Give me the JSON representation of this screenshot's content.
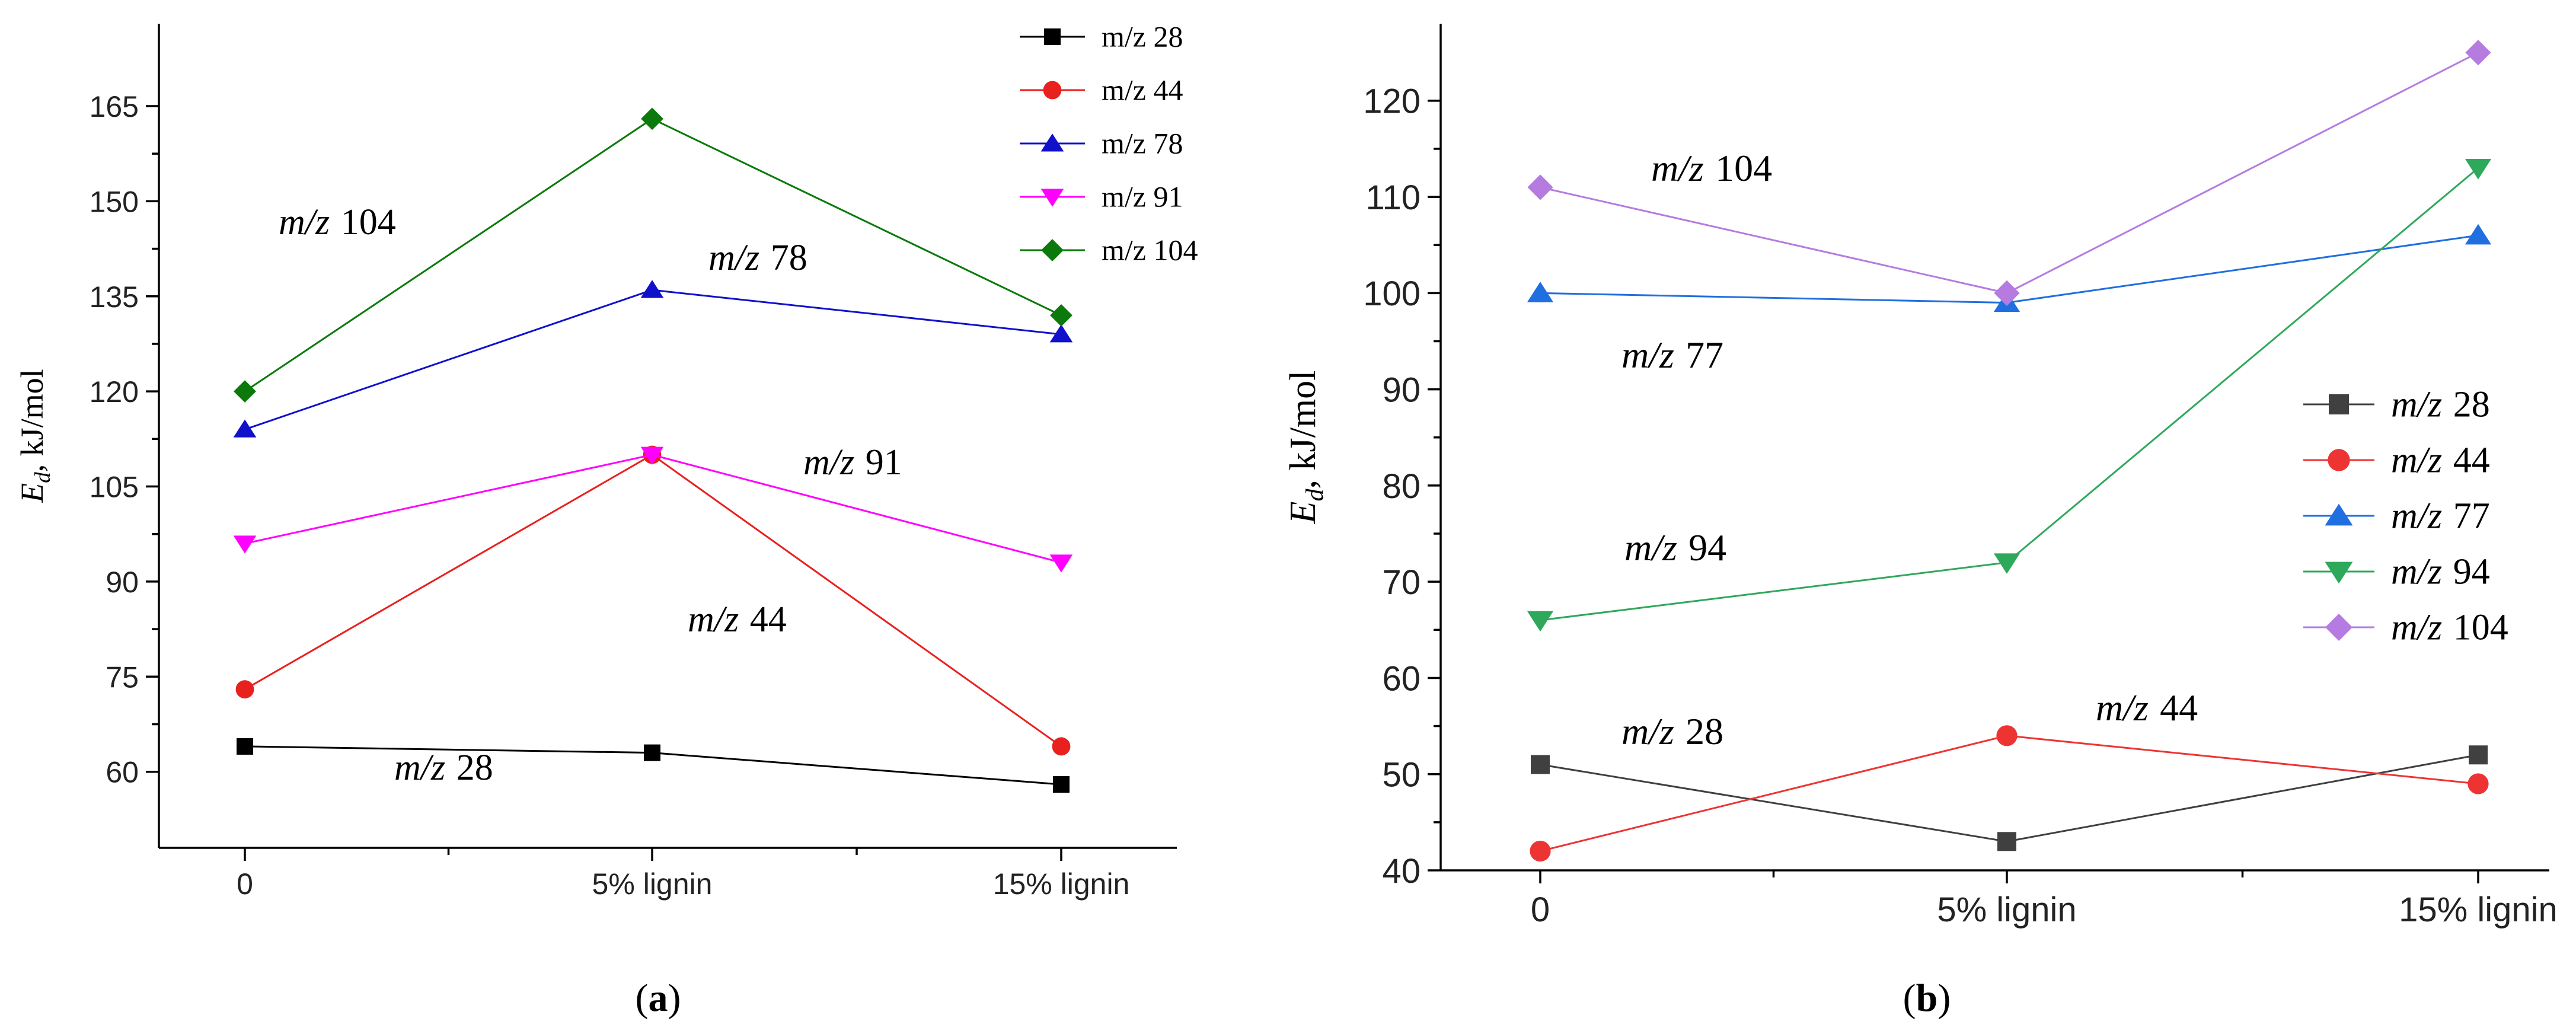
{
  "chart_data": [
    {
      "type": "line",
      "panel_label": "(a)",
      "panel_label_parts": {
        "open": "(",
        "letter": "a",
        "close": ")"
      },
      "categories": [
        "0",
        "5% lignin",
        "15% lignin"
      ],
      "ylabel": "E_d, kJ/mol",
      "ylabel_parts": {
        "main": "E",
        "sub": "d",
        "rest": ", kJ/mol"
      },
      "ylim": [
        48,
        178
      ],
      "yticks": [
        60,
        75,
        90,
        105,
        120,
        135,
        150,
        165
      ],
      "ytick_labels": [
        "60",
        "75",
        "90",
        "105",
        "120",
        "135",
        "150",
        "165"
      ],
      "legend_position": "top-right",
      "series": [
        {
          "name": "m/z 28",
          "legend_label": "m/z 28",
          "color": "#000000",
          "marker": "square",
          "values": [
            64,
            63,
            58
          ]
        },
        {
          "name": "m/z 44",
          "legend_label": "m/z 44",
          "color": "#e8211e",
          "marker": "circle",
          "values": [
            73,
            110,
            64
          ]
        },
        {
          "name": "m/z 78",
          "legend_label": "m/z 78",
          "color": "#1111cc",
          "marker": "triangle-up",
          "values": [
            114,
            136,
            129
          ]
        },
        {
          "name": "m/z 91",
          "legend_label": "m/z 91",
          "color": "#ff00ff",
          "marker": "triangle-down",
          "values": [
            96,
            110,
            93
          ]
        },
        {
          "name": "m/z 104",
          "legend_label": "m/z 104",
          "color": "#0b7a0b",
          "marker": "diamond",
          "values": [
            120,
            163,
            132
          ]
        }
      ],
      "annotations": [
        {
          "series": "m/z 104",
          "prefix": "m/z",
          "num": "104"
        },
        {
          "series": "m/z 78",
          "prefix": "m/z",
          "num": "78"
        },
        {
          "series": "m/z 91",
          "prefix": "m/z",
          "num": "91"
        },
        {
          "series": "m/z 44",
          "prefix": "m/z",
          "num": "44"
        },
        {
          "series": "m/z 28",
          "prefix": "m/z",
          "num": "28"
        }
      ]
    },
    {
      "type": "line",
      "panel_label": "(b)",
      "panel_label_parts": {
        "open": "(",
        "letter": "b",
        "close": ")"
      },
      "categories": [
        "0",
        "5% lignin",
        "15% lignin"
      ],
      "ylabel": "E_d, kJ/mol",
      "ylabel_parts": {
        "main": "E",
        "sub": "d",
        "rest": ", kJ/mol"
      },
      "ylim": [
        40,
        128
      ],
      "yticks": [
        40,
        50,
        60,
        70,
        80,
        90,
        100,
        110,
        120
      ],
      "ytick_labels": [
        "40",
        "50",
        "60",
        "70",
        "80",
        "90",
        "100",
        "110",
        "120"
      ],
      "legend_position": "center-right",
      "series": [
        {
          "name": "m/z 28",
          "legend_label": "m/z 28",
          "color": "#404040",
          "marker": "square",
          "values": [
            51,
            43,
            52
          ]
        },
        {
          "name": "m/z 44",
          "legend_label": "m/z 44",
          "color": "#ee3333",
          "marker": "circle",
          "values": [
            42,
            54,
            49
          ]
        },
        {
          "name": "m/z 77",
          "legend_label": "m/z 77",
          "color": "#1f6fe0",
          "marker": "triangle-up",
          "values": [
            100,
            99,
            106
          ]
        },
        {
          "name": "m/z 94",
          "legend_label": "m/z 94",
          "color": "#2ea85a",
          "marker": "triangle-down",
          "values": [
            66,
            72,
            113
          ]
        },
        {
          "name": "m/z 104",
          "legend_label": "m/z 104",
          "color": "#b57be0",
          "marker": "diamond",
          "values": [
            111,
            100,
            125
          ]
        }
      ],
      "annotations": [
        {
          "series": "m/z 104",
          "prefix": "m/z",
          "num": "104"
        },
        {
          "series": "m/z 77",
          "prefix": "m/z",
          "num": "77"
        },
        {
          "series": "m/z 94",
          "prefix": "m/z",
          "num": "94"
        },
        {
          "series": "m/z 28",
          "prefix": "m/z",
          "num": "28"
        },
        {
          "series": "m/z 44",
          "prefix": "m/z",
          "num": "44"
        }
      ]
    }
  ]
}
